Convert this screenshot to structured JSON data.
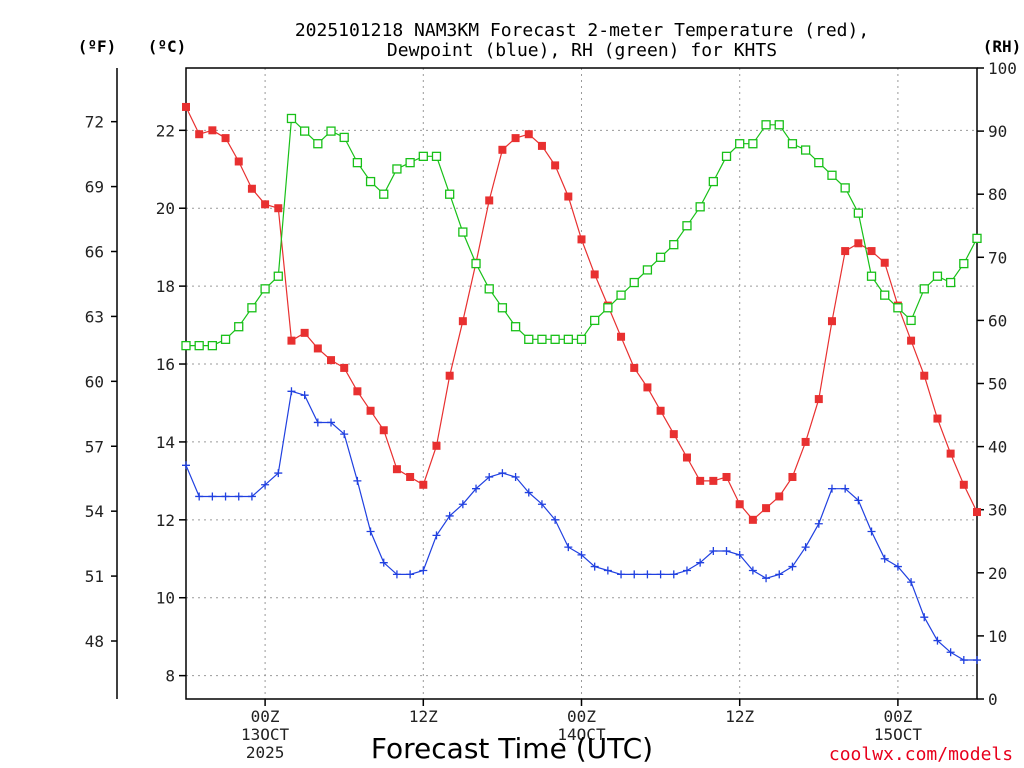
{
  "chart_data": {
    "type": "line",
    "title_line1": "2025101218 NAM3KM Forecast 2-meter Temperature (red),",
    "title_line2": "Dewpoint (blue), RH (green) for KHTS",
    "xlabel": "Forecast Time (UTC)",
    "credit": "coolwx.com/models",
    "y_left_units": "(ºF)",
    "y_inner_units": "(ºC)",
    "y_right_units": "(RH)",
    "x_range_hours": [
      -6,
      54
    ],
    "y_celsius_range": [
      7.4,
      23.6
    ],
    "y_rh_range": [
      0,
      100
    ],
    "celsius_ticks": [
      8,
      10,
      12,
      14,
      16,
      18,
      20,
      22
    ],
    "fahrenheit_ticks": [
      48,
      51,
      54,
      57,
      60,
      63,
      66,
      69,
      72
    ],
    "rh_ticks": [
      0,
      10,
      20,
      30,
      40,
      50,
      60,
      70,
      80,
      90,
      100
    ],
    "grid_x_hours": [
      0,
      12,
      24,
      36,
      48
    ],
    "x_ticks": [
      {
        "hour": 0,
        "lines": [
          "00Z",
          "13OCT",
          "2025"
        ]
      },
      {
        "hour": 12,
        "lines": [
          "12Z"
        ]
      },
      {
        "hour": 24,
        "lines": [
          "00Z",
          "14OCT"
        ]
      },
      {
        "hour": 36,
        "lines": [
          "12Z"
        ]
      },
      {
        "hour": 48,
        "lines": [
          "00Z",
          "15OCT"
        ]
      }
    ],
    "hours": [
      -6,
      -5,
      -4,
      -3,
      -2,
      -1,
      0,
      1,
      2,
      3,
      4,
      5,
      6,
      7,
      8,
      9,
      10,
      11,
      12,
      13,
      14,
      15,
      16,
      17,
      18,
      19,
      20,
      21,
      22,
      23,
      24,
      25,
      26,
      27,
      28,
      29,
      30,
      31,
      32,
      33,
      34,
      35,
      36,
      37,
      38,
      39,
      40,
      41,
      42,
      43,
      44,
      45,
      46,
      47,
      48,
      49,
      50,
      51,
      52,
      53,
      54
    ],
    "series": [
      {
        "name": "2-meter Temperature",
        "unit": "C",
        "color": "#e83030",
        "marker": "filled-square",
        "values": [
          22.6,
          21.9,
          22.0,
          21.8,
          21.2,
          20.5,
          20.1,
          20.0,
          16.6,
          16.8,
          16.4,
          16.1,
          15.9,
          15.3,
          14.8,
          14.3,
          13.3,
          13.1,
          12.9,
          13.9,
          15.7,
          17.1,
          18.6,
          20.2,
          21.5,
          21.8,
          21.9,
          21.6,
          21.1,
          20.3,
          19.2,
          18.3,
          17.5,
          16.7,
          15.9,
          15.4,
          14.8,
          14.2,
          13.6,
          13.0,
          13.0,
          13.1,
          12.4,
          12.0,
          12.3,
          12.6,
          13.1,
          14.0,
          15.1,
          17.1,
          18.9,
          19.1,
          18.9,
          18.6,
          17.5,
          16.6,
          15.7,
          14.6,
          13.7,
          12.9,
          12.2
        ]
      },
      {
        "name": "Dewpoint",
        "unit": "C",
        "color": "#2040e0",
        "marker": "plus",
        "values": [
          13.4,
          12.6,
          12.6,
          12.6,
          12.6,
          12.6,
          12.9,
          13.2,
          15.3,
          15.2,
          14.5,
          14.5,
          14.2,
          13.0,
          11.7,
          10.9,
          10.6,
          10.6,
          10.7,
          11.6,
          12.1,
          12.4,
          12.8,
          13.1,
          13.2,
          13.1,
          12.7,
          12.4,
          12.0,
          11.3,
          11.1,
          10.8,
          10.7,
          10.6,
          10.6,
          10.6,
          10.6,
          10.6,
          10.7,
          10.9,
          11.2,
          11.2,
          11.1,
          10.7,
          10.5,
          10.6,
          10.8,
          11.3,
          11.9,
          12.8,
          12.8,
          12.5,
          11.7,
          11.0,
          10.8,
          10.4,
          9.5,
          8.9,
          8.6,
          8.4,
          8.4
        ]
      },
      {
        "name": "RH",
        "unit": "%",
        "color": "#18c018",
        "marker": "open-square",
        "values": [
          56,
          56,
          56,
          57,
          59,
          62,
          65,
          67,
          92,
          90,
          88,
          90,
          89,
          85,
          82,
          80,
          84,
          85,
          86,
          86,
          80,
          74,
          69,
          65,
          62,
          59,
          57,
          57,
          57,
          57,
          57,
          60,
          62,
          64,
          66,
          68,
          70,
          72,
          75,
          78,
          82,
          86,
          88,
          88,
          91,
          91,
          88,
          87,
          85,
          83,
          81,
          77,
          67,
          64,
          62,
          60,
          65,
          67,
          66,
          69,
          73
        ]
      }
    ]
  }
}
